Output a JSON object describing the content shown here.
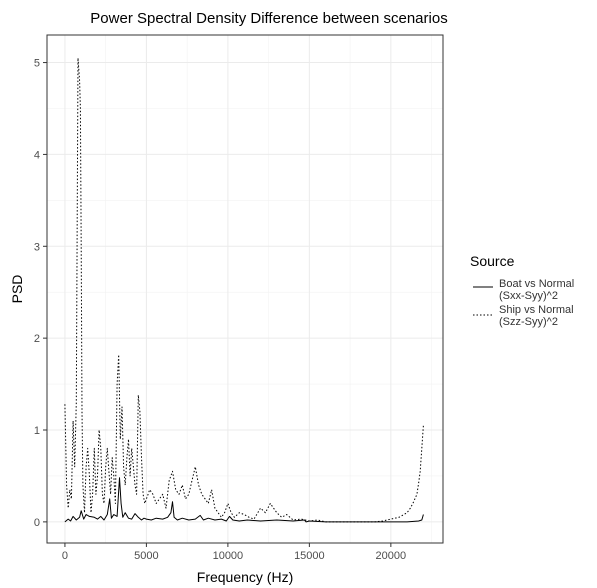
{
  "chart_data": {
    "type": "line",
    "title": "Power Spectral Density Difference between scenarios",
    "xlabel": "Frequency (Hz)",
    "ylabel": "PSD",
    "xlim": [
      -1100,
      23200
    ],
    "ylim": [
      -0.23,
      5.3
    ],
    "x_ticks": [
      0,
      5000,
      10000,
      15000,
      20000
    ],
    "y_ticks": [
      0,
      1,
      2,
      3,
      4,
      5
    ],
    "grid": true,
    "legend": {
      "title": "Source",
      "placement": "right",
      "entries": [
        {
          "line1": "Boat vs Normal",
          "line2": "(Sxx-Syy)^2",
          "style": "solid"
        },
        {
          "line1": "Ship vs Normal",
          "line2": "(Szz-Syy)^2",
          "style": "dotted"
        }
      ]
    },
    "series": [
      {
        "line_style": "solid",
        "color": "#000000",
        "x": [
          0,
          200,
          350,
          500,
          700,
          900,
          1000,
          1150,
          1300,
          1500,
          1800,
          2000,
          2200,
          2400,
          2600,
          2750,
          2850,
          3000,
          3200,
          3350,
          3450,
          3550,
          3700,
          3900,
          4100,
          4300,
          4500,
          4700,
          4850,
          5000,
          5300,
          5600,
          6000,
          6300,
          6500,
          6600,
          6700,
          6900,
          7200,
          7600,
          8000,
          8300,
          8500,
          8800,
          9200,
          9600,
          9900,
          10100,
          10300,
          10700,
          11200,
          12000,
          13000,
          14000,
          14700,
          14800,
          15000,
          16000,
          17000,
          18000,
          19000,
          20000,
          21000,
          21700,
          21900,
          22000
        ],
        "y": [
          0.0,
          0.03,
          0.01,
          0.06,
          0.02,
          0.05,
          0.12,
          0.03,
          0.08,
          0.06,
          0.05,
          0.03,
          0.06,
          0.02,
          0.08,
          0.25,
          0.04,
          0.08,
          0.06,
          0.48,
          0.2,
          0.05,
          0.1,
          0.04,
          0.03,
          0.09,
          0.05,
          0.02,
          0.04,
          0.03,
          0.02,
          0.04,
          0.03,
          0.05,
          0.1,
          0.22,
          0.05,
          0.02,
          0.04,
          0.02,
          0.03,
          0.07,
          0.02,
          0.04,
          0.02,
          0.03,
          0.01,
          0.06,
          0.02,
          0.01,
          0.02,
          0.01,
          0.02,
          0.01,
          0.02,
          0.0,
          0.01,
          0.0,
          0.0,
          0.0,
          0.0,
          0.0,
          0.0,
          0.01,
          0.02,
          0.08
        ]
      },
      {
        "line_style": "dotted",
        "color": "#000000",
        "x": [
          0,
          100,
          200,
          300,
          400,
          500,
          600,
          700,
          800,
          900,
          950,
          1000,
          1050,
          1100,
          1200,
          1300,
          1400,
          1500,
          1600,
          1700,
          1800,
          1900,
          2000,
          2100,
          2200,
          2300,
          2400,
          2500,
          2600,
          2700,
          2800,
          2900,
          3000,
          3100,
          3200,
          3300,
          3400,
          3500,
          3600,
          3700,
          3800,
          3900,
          4000,
          4100,
          4200,
          4300,
          4400,
          4500,
          4600,
          4700,
          4800,
          4900,
          5000,
          5200,
          5400,
          5600,
          5800,
          6000,
          6200,
          6400,
          6600,
          6800,
          7000,
          7200,
          7400,
          7600,
          7800,
          8000,
          8200,
          8400,
          8600,
          8800,
          9000,
          9200,
          9400,
          9600,
          9800,
          10000,
          10200,
          10400,
          10700,
          11000,
          11300,
          11600,
          12000,
          12300,
          12600,
          13000,
          13300,
          13600,
          14000,
          14500,
          15000,
          15500,
          16000,
          17000,
          18000,
          19000,
          19500,
          20000,
          20500,
          21000,
          21200,
          21400,
          21600,
          21700,
          21800,
          21900,
          22000
        ],
        "y": [
          1.28,
          0.4,
          0.15,
          0.35,
          0.25,
          1.1,
          0.6,
          1.3,
          5.05,
          4.8,
          4.5,
          3.0,
          1.2,
          0.4,
          0.1,
          0.6,
          0.8,
          0.5,
          0.1,
          0.3,
          0.8,
          0.3,
          0.5,
          1.0,
          0.8,
          0.3,
          0.2,
          0.6,
          0.8,
          0.55,
          0.3,
          0.7,
          0.5,
          0.2,
          1.5,
          1.82,
          0.9,
          1.25,
          0.6,
          0.4,
          0.7,
          0.9,
          0.5,
          0.8,
          0.6,
          0.4,
          0.3,
          1.38,
          1.2,
          0.7,
          0.3,
          0.2,
          0.25,
          0.35,
          0.3,
          0.2,
          0.25,
          0.3,
          0.15,
          0.45,
          0.55,
          0.35,
          0.3,
          0.4,
          0.25,
          0.3,
          0.45,
          0.6,
          0.4,
          0.3,
          0.25,
          0.2,
          0.35,
          0.15,
          0.1,
          0.05,
          0.1,
          0.2,
          0.1,
          0.05,
          0.1,
          0.08,
          0.05,
          0.03,
          0.15,
          0.1,
          0.2,
          0.1,
          0.05,
          0.08,
          0.02,
          0.03,
          0.01,
          0.02,
          0.0,
          0.0,
          0.0,
          0.0,
          0.01,
          0.03,
          0.05,
          0.1,
          0.15,
          0.22,
          0.3,
          0.42,
          0.55,
          0.8,
          1.05
        ]
      }
    ]
  }
}
